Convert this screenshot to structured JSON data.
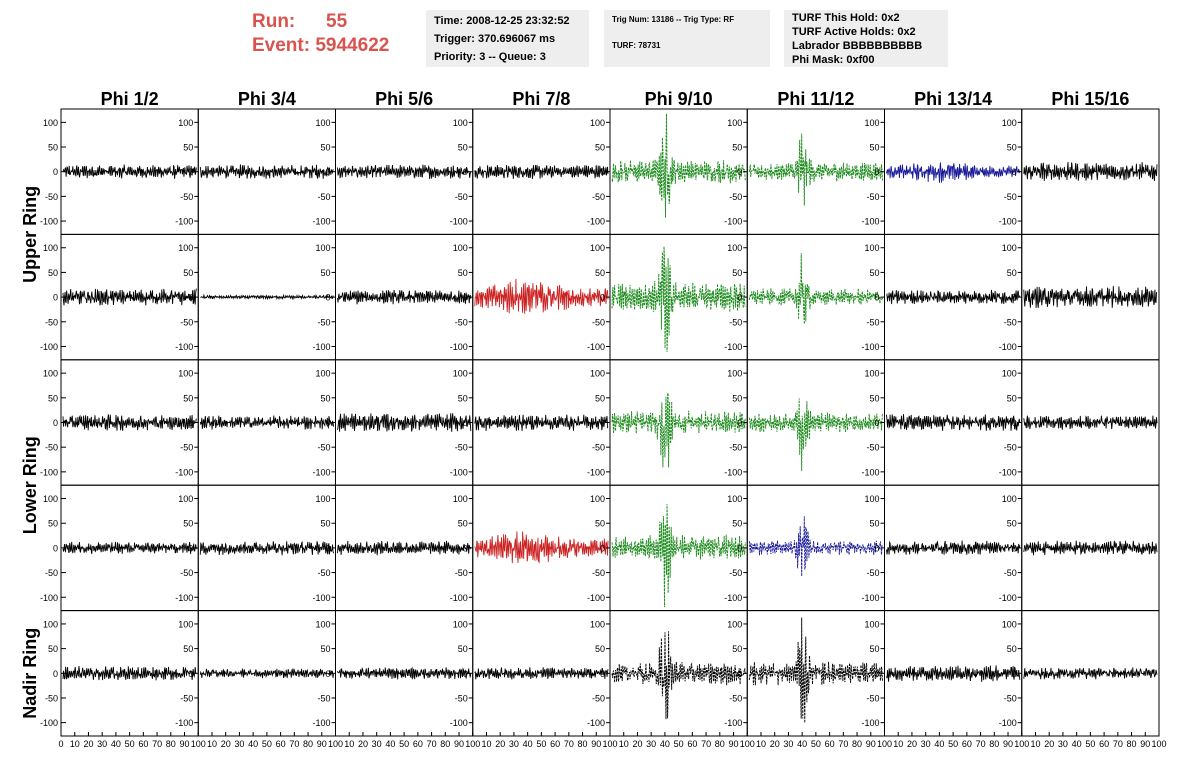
{
  "header": {
    "run_label": "Run:",
    "run_value": "55",
    "event_label": "Event:",
    "event_value": "5944622",
    "time": "Time: 2008-12-25 23:32:52",
    "trigger": "Trigger: 370.696067 ms",
    "priority": "Priority: 3 -- Queue: 3",
    "trig_num": "Trig Num: 13186 -- Trig Type: RF",
    "turf": "TURF: 78731",
    "turf_this_hold": "TURF This Hold: 0x2",
    "turf_active_holds": "TURF Active Holds: 0x2",
    "labrador": "Labrador BBBBBBBBBB",
    "phi_mask": "Phi Mask: 0xf00"
  },
  "chart_data": {
    "type": "line",
    "columns": [
      "Phi 1/2",
      "Phi 3/4",
      "Phi 5/6",
      "Phi 7/8",
      "Phi 9/10",
      "Phi 11/12",
      "Phi 13/14",
      "Phi 15/16"
    ],
    "ring_labels": [
      {
        "text": "Upper Ring",
        "rows": [
          0,
          1
        ]
      },
      {
        "text": "Lower Ring",
        "rows": [
          2,
          3
        ]
      },
      {
        "text": "Nadir Ring",
        "rows": [
          4
        ]
      }
    ],
    "ylim": [
      -125,
      125
    ],
    "yticks": [
      100,
      50,
      0,
      -50,
      -100
    ],
    "xlim": [
      0,
      100
    ],
    "xtick_labels": [
      "0",
      "10",
      "20",
      "30",
      "40",
      "50",
      "60",
      "70",
      "80",
      "90",
      "100"
    ],
    "colors": {
      "black": "#000000",
      "green": "#1a8a1a",
      "red": "#cc2222",
      "blue": "#1a1a99"
    },
    "panels": [
      [
        "black:12:none",
        "black:12:none",
        "black:12:none",
        "black:12:none",
        "green:22:burst",
        "green:18:burst",
        "blue:14:mid",
        "black:16:none"
      ],
      [
        "black:14:none",
        "black:3:none",
        "black:12:none",
        "red:25:mid",
        "green:28:burst",
        "green:16:burst",
        "black:12:none",
        "black:18:none"
      ],
      [
        "black:14:none",
        "black:12:none",
        "black:16:none",
        "black:14:none",
        "green:22:burst",
        "green:18:burst",
        "black:14:none",
        "black:12:none"
      ],
      [
        "black:10:none",
        "black:12:none",
        "black:12:none",
        "red:22:mid",
        "green:24:burst",
        "blue:14:burst",
        "black:12:none",
        "black:12:none"
      ],
      [
        "black:12:none",
        "black:8:none",
        "black:10:none",
        "black:10:none",
        "black:22:burst",
        "black:22:burst",
        "black:14:none",
        "black:10:none"
      ]
    ]
  }
}
